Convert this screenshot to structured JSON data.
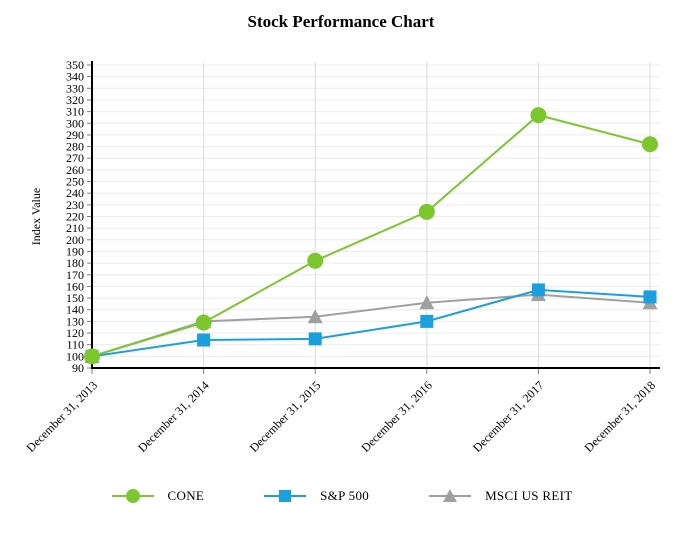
{
  "title": "Stock Performance Chart",
  "chart_data": {
    "type": "line",
    "title": "Stock Performance Chart",
    "xlabel": "",
    "ylabel": "Index Value",
    "categories": [
      "December 31, 2013",
      "December 31, 2014",
      "December 31, 2015",
      "December 31, 2016",
      "December 31, 2017",
      "December 31, 2018"
    ],
    "series": [
      {
        "name": "CONE",
        "marker": "circle",
        "color": "#7CC62E",
        "values": [
          100,
          129,
          182,
          224,
          307,
          282
        ]
      },
      {
        "name": "S&P 500",
        "marker": "square",
        "color": "#1C9FDD",
        "values": [
          100,
          114,
          115,
          130,
          157,
          151
        ]
      },
      {
        "name": "MSCI US REIT",
        "marker": "triangle",
        "color": "#A0A0A0",
        "values": [
          100,
          130,
          134,
          146,
          153,
          146
        ]
      }
    ],
    "ylim": [
      90,
      350
    ],
    "ytick_step": 10,
    "grid": true,
    "legend_position": "bottom"
  },
  "colors": {
    "axis": "#000000",
    "tick": "#7f7f7f",
    "grid_horizontal": "#ececec",
    "grid_vertical": "#dcdcdc",
    "background": "#ffffff"
  }
}
